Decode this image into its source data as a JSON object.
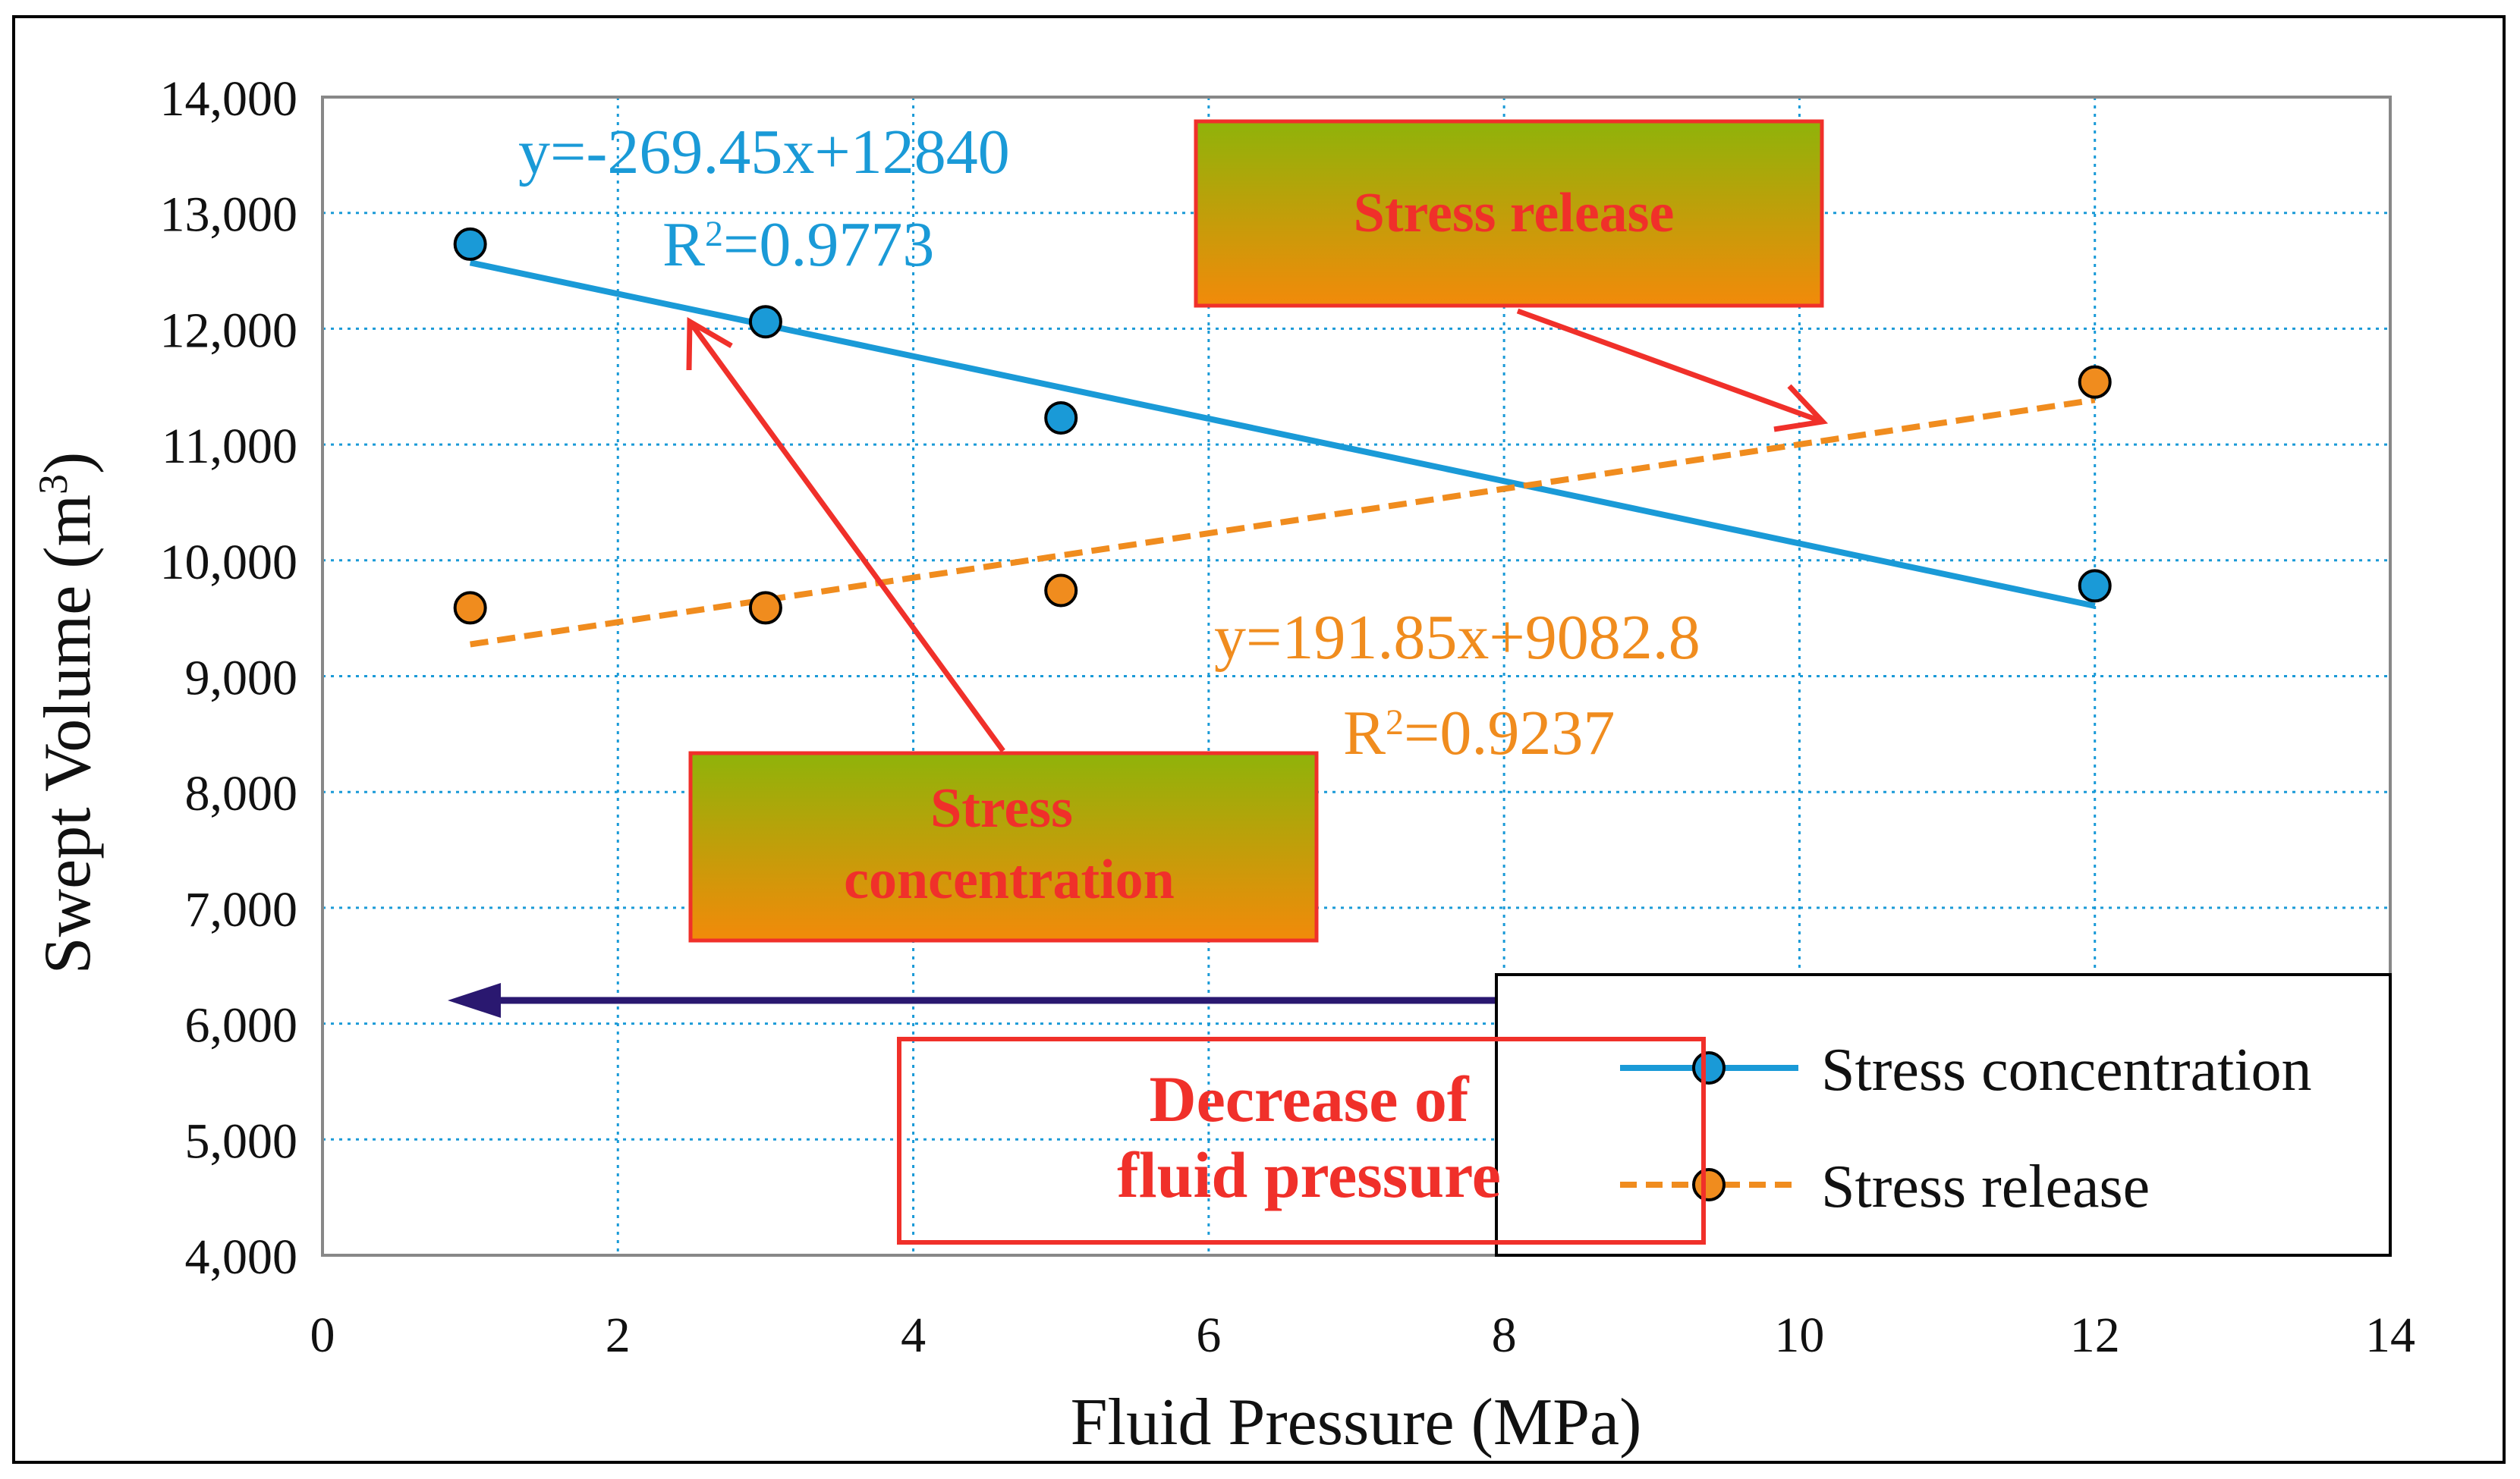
{
  "chart_data": {
    "type": "scatter",
    "xlabel": "Fluid Pressure (MPa)",
    "ylabel_main": "Swept Volume (m",
    "ylabel_sup": "3",
    "ylabel_close": ")",
    "xlim": [
      0,
      14
    ],
    "ylim": [
      4000,
      14000
    ],
    "x_ticks": [
      0,
      2,
      4,
      6,
      8,
      10,
      12,
      14
    ],
    "y_ticks": [
      4000,
      5000,
      6000,
      7000,
      8000,
      9000,
      10000,
      11000,
      12000,
      13000,
      14000
    ],
    "x_tick_labels": [
      "0",
      "2",
      "4",
      "6",
      "8",
      "10",
      "12",
      "14"
    ],
    "y_tick_labels": [
      "4,000",
      "5,000",
      "6,000",
      "7,000",
      "8,000",
      "9,000",
      "10,000",
      "11,000",
      "12,000",
      "13,000",
      "14,000"
    ],
    "grid": true,
    "series": [
      {
        "name": "Stress concentration",
        "color": "#1a9ad7",
        "line_style": "solid",
        "x": [
          1,
          3,
          5,
          12
        ],
        "y": [
          12730,
          12060,
          11230,
          9780
        ],
        "trendline": {
          "slope": -269.45,
          "intercept": 12840,
          "x_range": [
            1,
            12
          ],
          "equation": "y=-269.45x+12840",
          "r2_prefix": "R",
          "r2_sup": "2",
          "r2_value": "=0.9773"
        }
      },
      {
        "name": "Stress release",
        "color": "#f08c1e",
        "line_style": "dashed",
        "x": [
          1,
          3,
          5,
          12
        ],
        "y": [
          9590,
          9590,
          9740,
          11540
        ],
        "trendline": {
          "slope": 191.85,
          "intercept": 9082.8,
          "x_range": [
            1,
            12
          ],
          "equation": "y=191.85x+9082.8",
          "r2_prefix": "R",
          "r2_sup": "2",
          "r2_value": "=0.9237"
        }
      }
    ],
    "legend": {
      "placement": "bottom-right",
      "entries": [
        "Stress concentration",
        "Stress release"
      ]
    },
    "annotations": {
      "stress_release_box": "Stress release",
      "stress_concentration_box_line1": "Stress",
      "stress_concentration_box_line2": "concentration",
      "decrease_box_line1": "Decrease of",
      "decrease_box_line2": "fluid pressure"
    },
    "colors": {
      "axis": "#888888",
      "grid": "#1a9ad7",
      "annotation_red": "#f0302a",
      "box_top": "#8fb30a",
      "box_bottom": "#f28a0a",
      "direction_arrow": "#2a1870"
    }
  }
}
